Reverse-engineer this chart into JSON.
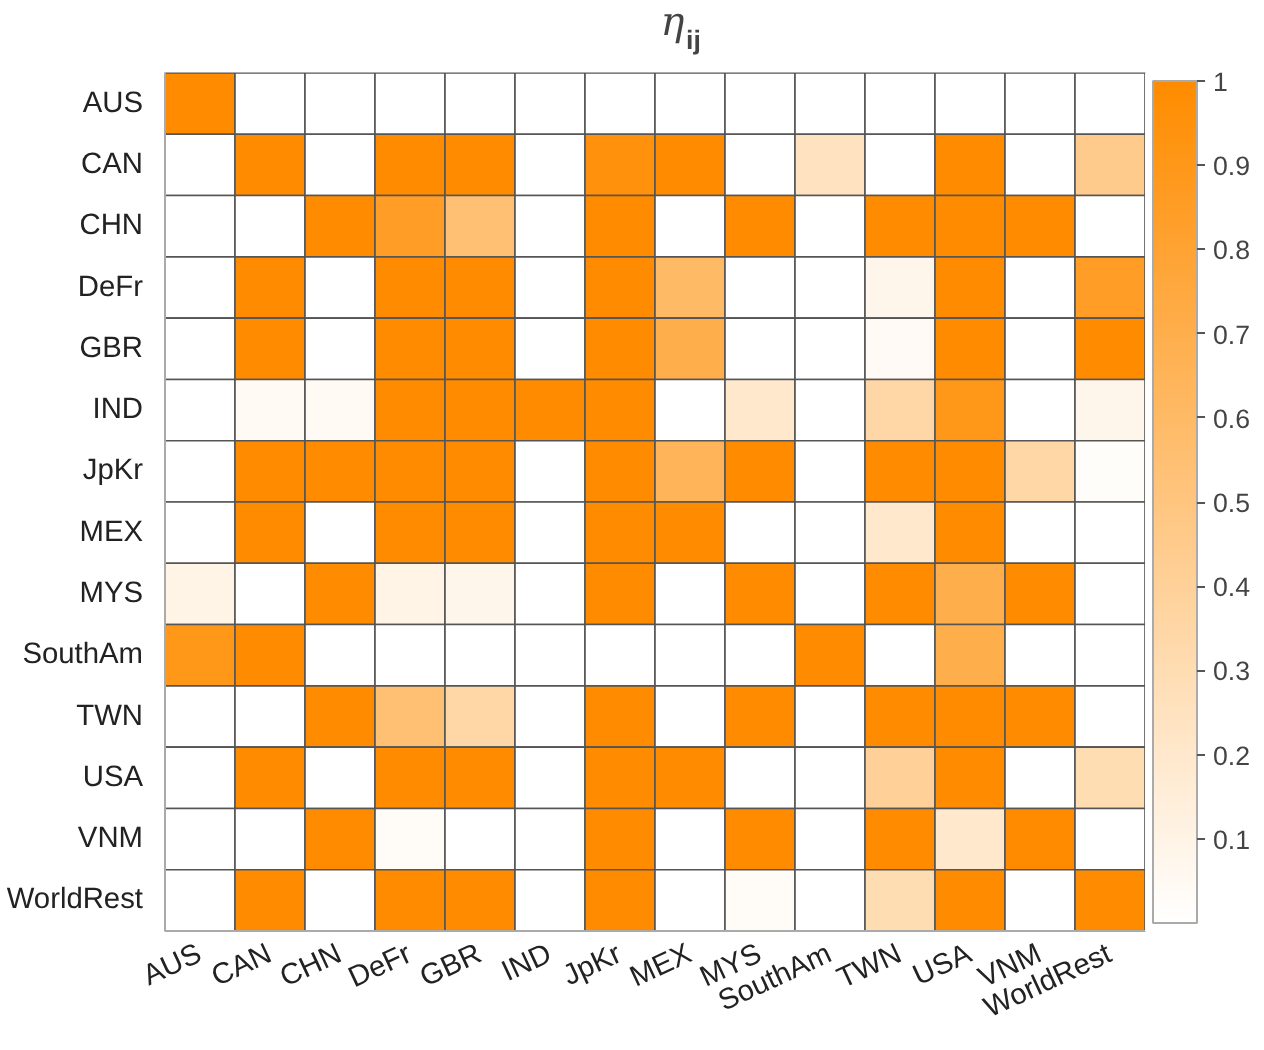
{
  "chart_data": {
    "type": "heatmap",
    "title": "η$_{ij}$",
    "categories": [
      "AUS",
      "CAN",
      "CHN",
      "DeFr",
      "GBR",
      "IND",
      "JpKr",
      "MEX",
      "MYS",
      "SouthAm",
      "TWN",
      "USA",
      "VNM",
      "WorldRest"
    ],
    "y_categories": [
      "AUS",
      "CAN",
      "CHN",
      "DeFr",
      "GBR",
      "IND",
      "JpKr",
      "MEX",
      "MYS",
      "SouthAm",
      "TWN",
      "USA",
      "VNM",
      "WorldRest"
    ],
    "cells": [
      [
        1,
        0,
        0,
        0,
        0,
        0,
        0,
        0,
        0,
        0,
        0,
        0,
        0,
        0
      ],
      [
        0,
        1,
        0,
        1,
        1,
        0,
        0.95,
        1,
        0,
        0.25,
        0,
        1,
        0,
        0.45
      ],
      [
        0,
        0,
        1,
        0.85,
        0.55,
        0,
        1,
        0,
        1,
        0,
        1,
        1,
        1,
        0
      ],
      [
        0,
        1,
        0,
        1,
        1,
        0,
        1,
        0.6,
        0,
        0,
        0.08,
        1,
        0,
        0.85
      ],
      [
        0,
        1,
        0,
        1,
        1,
        0,
        1,
        0.7,
        0,
        0,
        0.04,
        1,
        0,
        1
      ],
      [
        0,
        0.05,
        0.05,
        1,
        1,
        1,
        1,
        0,
        0.2,
        0,
        0.35,
        0.9,
        0,
        0.08
      ],
      [
        0,
        1,
        1,
        1,
        1,
        0,
        1,
        0.65,
        1,
        0,
        1,
        1,
        0.35,
        0.02
      ],
      [
        0,
        1,
        0,
        1,
        1,
        0,
        1,
        1,
        0,
        0,
        0.2,
        1,
        0,
        0
      ],
      [
        0.1,
        0,
        1,
        0.1,
        0.08,
        0,
        1,
        0,
        1,
        0,
        1,
        0.7,
        1,
        0
      ],
      [
        0.9,
        1,
        0,
        0,
        0,
        0,
        0,
        0,
        0,
        1,
        0,
        0.7,
        0,
        0
      ],
      [
        0,
        0,
        1,
        0.55,
        0.35,
        0,
        1,
        0,
        1,
        0,
        1,
        1,
        1,
        0
      ],
      [
        0,
        1,
        0,
        1,
        1,
        0,
        1,
        1,
        0,
        0,
        0.4,
        1,
        0,
        0.3
      ],
      [
        0,
        0,
        1,
        0.03,
        0,
        0,
        1,
        0,
        1,
        0,
        1,
        0.2,
        1,
        0
      ],
      [
        0,
        1,
        0,
        1,
        1,
        0,
        1,
        0,
        0.03,
        0,
        0.3,
        1,
        0,
        1
      ]
    ],
    "colors": [
      "#ffffff",
      "#ff8c00"
    ],
    "clim": [
      0,
      1
    ],
    "cticks": [
      0.1,
      0.2,
      0.3,
      0.4,
      0.5,
      0.6,
      0.7,
      0.8,
      0.9,
      1
    ]
  }
}
